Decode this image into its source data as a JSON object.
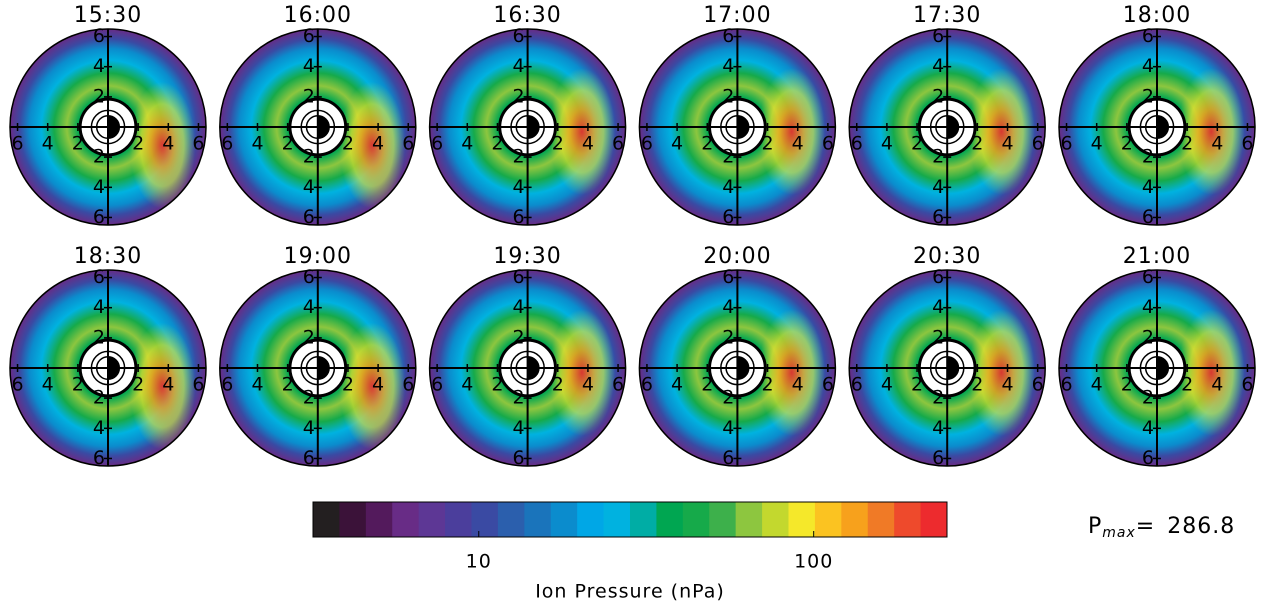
{
  "chart_data": {
    "type": "polar-heatmap",
    "panels": [
      "15:30",
      "16:00",
      "16:30",
      "17:00",
      "17:30",
      "18:00",
      "18:30",
      "19:00",
      "19:30",
      "20:00",
      "20:30",
      "21:00"
    ],
    "rlim": [
      0,
      6.5
    ],
    "rticks": [
      2,
      4,
      6
    ],
    "colorbar": {
      "label": "Ion Pressure (nPa)",
      "clim": [
        3.2,
        250
      ],
      "log": true,
      "ticks": [
        10,
        100
      ],
      "colors": [
        "#231f20",
        "#3b1239",
        "#531a5c",
        "#682c86",
        "#5d3795",
        "#4b3e9c",
        "#3a4aa3",
        "#2b5fad",
        "#1a74bb",
        "#0b8ccd",
        "#00a7e6",
        "#00b2e0",
        "#00ada5",
        "#00a651",
        "#16aa4a",
        "#3db04b",
        "#8dc63f",
        "#c3d82e",
        "#f5e82a",
        "#fbc321",
        "#f7a11c",
        "#f07a26",
        "#ee4a2c",
        "#ed2b2e"
      ]
    },
    "pmax_label": "P",
    "pmax_sub": "max",
    "pmax_eq": "=",
    "pmax": 286.8
  }
}
